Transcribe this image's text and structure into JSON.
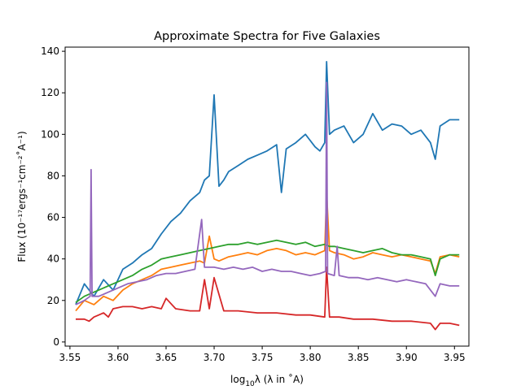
{
  "chart_data": {
    "type": "line",
    "title": "Approximate Spectra for Five Galaxies",
    "xlabel_prefix": "log",
    "xlabel_sub": "10",
    "xlabel_rest": "λ (λ in ˚A)",
    "ylabel": "Flux (10⁻¹⁷ergs⁻¹cm⁻²˚A⁻¹)",
    "xlim": [
      3.545,
      3.965
    ],
    "ylim": [
      -2,
      142
    ],
    "xticks": [
      3.55,
      3.6,
      3.65,
      3.7,
      3.75,
      3.8,
      3.85,
      3.9,
      3.95
    ],
    "xtick_labels": [
      "3.55",
      "3.60",
      "3.65",
      "3.70",
      "3.75",
      "3.80",
      "3.85",
      "3.90",
      "3.95"
    ],
    "yticks": [
      0,
      20,
      40,
      60,
      80,
      100,
      120,
      140
    ],
    "ytick_labels": [
      "0",
      "20",
      "40",
      "60",
      "80",
      "100",
      "120",
      "140"
    ],
    "grid": false,
    "legend": "none",
    "series": [
      {
        "color": "#1f77b4",
        "x": [
          3.556,
          3.565,
          3.575,
          3.585,
          3.595,
          3.605,
          3.615,
          3.625,
          3.635,
          3.645,
          3.655,
          3.665,
          3.675,
          3.685,
          3.69,
          3.695,
          3.7,
          3.705,
          3.71,
          3.715,
          3.725,
          3.735,
          3.745,
          3.755,
          3.765,
          3.77,
          3.775,
          3.785,
          3.795,
          3.805,
          3.81,
          3.815,
          3.817,
          3.82,
          3.825,
          3.835,
          3.845,
          3.855,
          3.865,
          3.875,
          3.885,
          3.895,
          3.905,
          3.915,
          3.925,
          3.93,
          3.935,
          3.945,
          3.955
        ],
        "y": [
          18,
          28,
          22,
          30,
          25,
          35,
          38,
          42,
          45,
          52,
          58,
          62,
          68,
          72,
          78,
          80,
          119,
          75,
          78,
          82,
          85,
          88,
          90,
          92,
          95,
          72,
          93,
          96,
          100,
          94,
          92,
          96,
          135,
          100,
          102,
          104,
          96,
          100,
          110,
          102,
          105,
          104,
          100,
          102,
          96,
          88,
          104,
          107,
          107
        ]
      },
      {
        "color": "#ff7f0e",
        "x": [
          3.556,
          3.565,
          3.575,
          3.585,
          3.595,
          3.605,
          3.615,
          3.625,
          3.635,
          3.645,
          3.655,
          3.665,
          3.675,
          3.685,
          3.69,
          3.695,
          3.7,
          3.705,
          3.715,
          3.725,
          3.735,
          3.745,
          3.755,
          3.765,
          3.775,
          3.785,
          3.795,
          3.805,
          3.815,
          3.817,
          3.82,
          3.825,
          3.835,
          3.845,
          3.855,
          3.865,
          3.875,
          3.885,
          3.895,
          3.905,
          3.915,
          3.925,
          3.93,
          3.935,
          3.945,
          3.955
        ],
        "y": [
          15,
          20,
          18,
          22,
          20,
          25,
          28,
          30,
          32,
          35,
          36,
          37,
          38,
          39,
          38,
          51,
          40,
          39,
          41,
          42,
          43,
          42,
          44,
          45,
          44,
          42,
          43,
          42,
          44,
          72,
          44,
          43,
          42,
          40,
          41,
          43,
          42,
          41,
          42,
          41,
          40,
          39,
          33,
          41,
          42,
          41
        ]
      },
      {
        "color": "#2ca02c",
        "x": [
          3.556,
          3.565,
          3.575,
          3.585,
          3.595,
          3.605,
          3.615,
          3.625,
          3.635,
          3.645,
          3.655,
          3.665,
          3.675,
          3.685,
          3.695,
          3.705,
          3.715,
          3.725,
          3.735,
          3.745,
          3.755,
          3.765,
          3.775,
          3.785,
          3.795,
          3.805,
          3.815,
          3.82,
          3.825,
          3.835,
          3.845,
          3.855,
          3.865,
          3.875,
          3.885,
          3.895,
          3.905,
          3.915,
          3.925,
          3.93,
          3.935,
          3.945,
          3.955
        ],
        "y": [
          19,
          22,
          24,
          26,
          28,
          30,
          32,
          35,
          37,
          40,
          41,
          42,
          43,
          44,
          45,
          46,
          47,
          47,
          48,
          47,
          48,
          49,
          48,
          47,
          48,
          46,
          47,
          46,
          46,
          45,
          44,
          43,
          44,
          45,
          43,
          42,
          42,
          41,
          40,
          32,
          40,
          42,
          42
        ]
      },
      {
        "color": "#d62728",
        "x": [
          3.556,
          3.565,
          3.57,
          3.575,
          3.58,
          3.585,
          3.59,
          3.595,
          3.605,
          3.615,
          3.625,
          3.635,
          3.645,
          3.65,
          3.66,
          3.675,
          3.685,
          3.69,
          3.695,
          3.7,
          3.71,
          3.725,
          3.745,
          3.765,
          3.785,
          3.8,
          3.815,
          3.817,
          3.82,
          3.83,
          3.845,
          3.865,
          3.885,
          3.905,
          3.925,
          3.93,
          3.935,
          3.945,
          3.955
        ],
        "y": [
          11,
          11,
          10,
          12,
          13,
          14,
          12,
          16,
          17,
          17,
          16,
          17,
          16,
          21,
          16,
          15,
          15,
          30,
          16,
          31,
          15,
          15,
          14,
          14,
          13,
          13,
          12,
          36,
          12,
          12,
          11,
          11,
          10,
          10,
          9,
          6,
          9,
          9,
          8
        ]
      },
      {
        "color": "#9467bd",
        "x": [
          3.556,
          3.565,
          3.571,
          3.572,
          3.573,
          3.58,
          3.59,
          3.6,
          3.61,
          3.62,
          3.63,
          3.64,
          3.65,
          3.66,
          3.67,
          3.68,
          3.687,
          3.69,
          3.7,
          3.71,
          3.72,
          3.73,
          3.74,
          3.75,
          3.76,
          3.77,
          3.78,
          3.79,
          3.8,
          3.81,
          3.816,
          3.817,
          3.818,
          3.825,
          3.828,
          3.83,
          3.84,
          3.85,
          3.86,
          3.87,
          3.88,
          3.89,
          3.9,
          3.91,
          3.92,
          3.93,
          3.935,
          3.945,
          3.955
        ],
        "y": [
          18,
          20,
          22,
          83,
          22,
          22,
          24,
          26,
          28,
          29,
          30,
          32,
          33,
          33,
          34,
          35,
          59,
          36,
          36,
          35,
          36,
          35,
          36,
          34,
          35,
          34,
          34,
          33,
          32,
          33,
          34,
          125,
          33,
          32,
          46,
          32,
          31,
          31,
          30,
          31,
          30,
          29,
          30,
          29,
          28,
          22,
          28,
          27,
          27
        ]
      }
    ]
  }
}
